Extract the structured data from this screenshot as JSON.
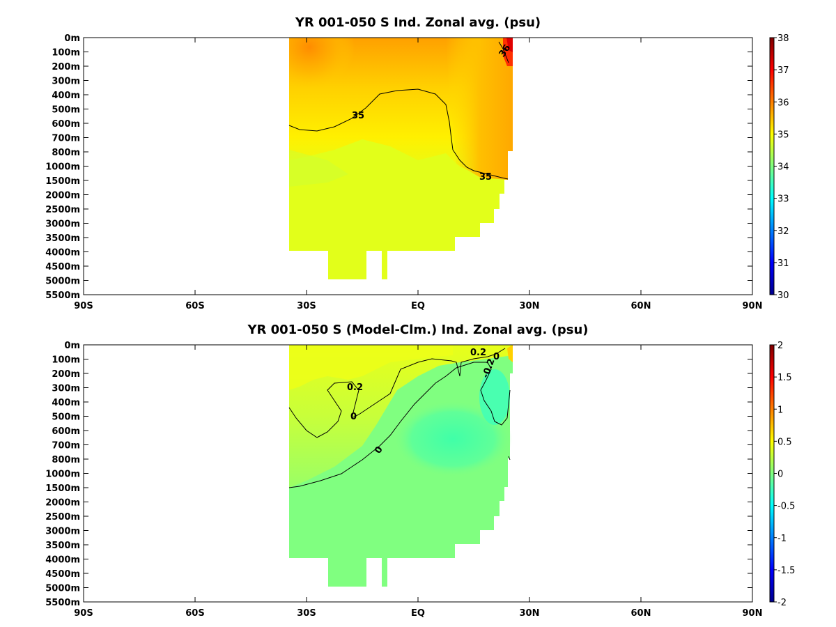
{
  "chart_data": [
    {
      "type": "heatmap",
      "title": "YR 001-050 S Ind. Zonal avg. (psu)",
      "x_ticks": [
        "90S",
        "60S",
        "30S",
        "EQ",
        "30N",
        "60N",
        "90N"
      ],
      "x_range": [
        -90,
        90
      ],
      "y_ticks": [
        "0m",
        "100m",
        "200m",
        "300m",
        "400m",
        "500m",
        "600m",
        "700m",
        "800m",
        "1000m",
        "1500m",
        "2000m",
        "2500m",
        "3000m",
        "3500m",
        "4000m",
        "4500m",
        "5000m",
        "5500m"
      ],
      "colorbar": {
        "min": 30,
        "max": 38,
        "ticks": [
          "38",
          "37",
          "36",
          "35",
          "34",
          "33",
          "32",
          "31",
          "30"
        ]
      },
      "contour_labels": [
        "35",
        "35",
        "36"
      ],
      "description_values": {
        "surface_max_salinity": 36.3,
        "deep_salinity": 34.7
      }
    },
    {
      "type": "heatmap",
      "title": "YR 001-050 S (Model-Clm.) Ind. Zonal avg. (psu)",
      "x_ticks": [
        "90S",
        "60S",
        "30S",
        "EQ",
        "30N",
        "60N",
        "90N"
      ],
      "x_range": [
        -90,
        90
      ],
      "y_ticks": [
        "0m",
        "100m",
        "200m",
        "300m",
        "400m",
        "500m",
        "600m",
        "700m",
        "800m",
        "1000m",
        "1500m",
        "2000m",
        "2500m",
        "3000m",
        "3500m",
        "4000m",
        "4500m",
        "5000m",
        "5500m"
      ],
      "colorbar": {
        "min": -2,
        "max": 2,
        "ticks": [
          "2",
          "1.5",
          "1",
          "0.5",
          "0",
          "-0.5",
          "-1",
          "-1.5",
          "-2"
        ]
      },
      "contour_labels": [
        "0.2",
        "0",
        "0",
        "0.2",
        "0",
        "-0.2"
      ]
    }
  ]
}
